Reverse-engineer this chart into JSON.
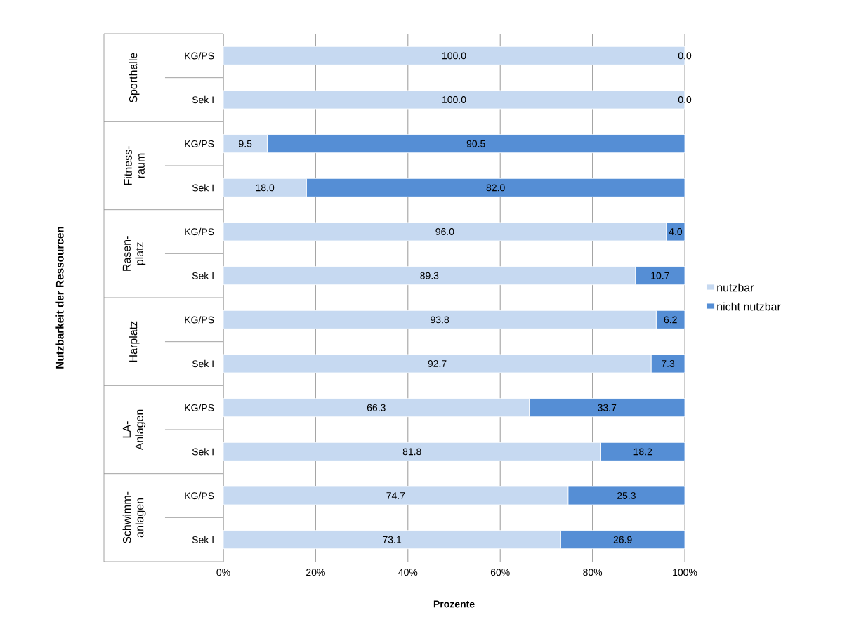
{
  "chart_data": {
    "type": "bar",
    "orientation": "horizontal",
    "stacked": true,
    "categories": [
      "KG/PS",
      "Sek I",
      "KG/PS",
      "Sek I",
      "KG/PS",
      "Sek I",
      "KG/PS",
      "Sek I",
      "KG/PS",
      "Sek I",
      "KG/PS",
      "Sek I"
    ],
    "series": [
      {
        "name": "nutzbar",
        "color": "#c6d9f1",
        "values": [
          100,
          100,
          9.5,
          18.0,
          96.0,
          89.3,
          93.8,
          92.7,
          66.3,
          81.8,
          74.7,
          73.1
        ],
        "value_labels": [
          "100.0",
          "100.0",
          "9.5",
          "18.0",
          "96.0",
          "89.3",
          "93.8",
          "92.7",
          "66.3",
          "81.8",
          "74.7",
          "73.1"
        ]
      },
      {
        "name": "nicht nutzbar",
        "color": "#558ed5",
        "values": [
          0,
          0,
          90.5,
          82.0,
          4.0,
          10.7,
          6.2,
          7.3,
          33.7,
          18.2,
          25.3,
          26.9
        ],
        "value_labels": [
          "0.0",
          "0.0",
          "90.5",
          "82.0",
          "4.0",
          "10.7",
          "6.2",
          "7.3",
          "33.7",
          "18.2",
          "25.3",
          "26.9"
        ]
      }
    ],
    "annotations": [
      "Nutzbarkeit der Ressourcen",
      "Sporthalle",
      "Fitness-raum",
      "Rasen-platz",
      "Harplatz",
      "LA-Anlagen",
      "Schwimm-anlagen"
    ],
    "xlabel": "Prozente",
    "xlim": [
      0,
      100
    ],
    "xticks": [
      {
        "value": 0,
        "label": "0%"
      },
      {
        "value": 20,
        "label": "20%"
      },
      {
        "value": 40,
        "label": "40%"
      },
      {
        "value": 60,
        "label": "60%"
      },
      {
        "value": 80,
        "label": "80%"
      },
      {
        "value": 100,
        "label": "100%"
      }
    ],
    "grid": "x",
    "legend": "right"
  }
}
